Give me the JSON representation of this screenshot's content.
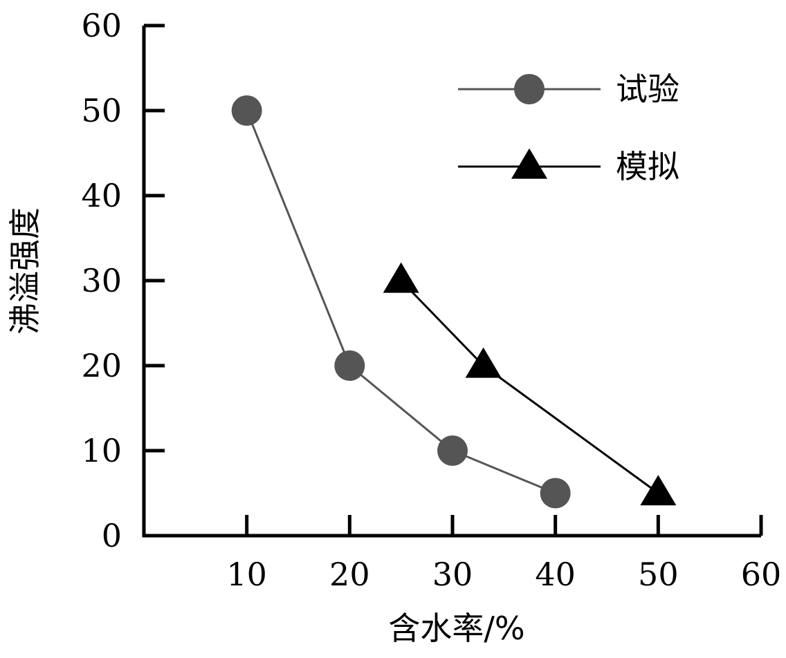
{
  "chart_data": {
    "type": "line",
    "xlabel": "含水率/%",
    "ylabel": "沸溢强度",
    "xlim": [
      0,
      60
    ],
    "ylim": [
      0,
      60
    ],
    "x_ticks": [
      10,
      20,
      30,
      40,
      50,
      60
    ],
    "y_ticks": [
      0,
      10,
      20,
      30,
      40,
      50,
      60
    ],
    "grid": false,
    "legend_position": "top-right",
    "series": [
      {
        "name": "试验",
        "marker": "circle",
        "line_color": "#555555",
        "marker_color": "#555555",
        "x": [
          10,
          20,
          30,
          40
        ],
        "y": [
          50,
          20,
          10,
          5
        ]
      },
      {
        "name": "模拟",
        "marker": "triangle",
        "line_color": "#000000",
        "marker_color": "#000000",
        "x": [
          25,
          33,
          50
        ],
        "y": [
          30,
          20,
          5
        ]
      }
    ]
  }
}
